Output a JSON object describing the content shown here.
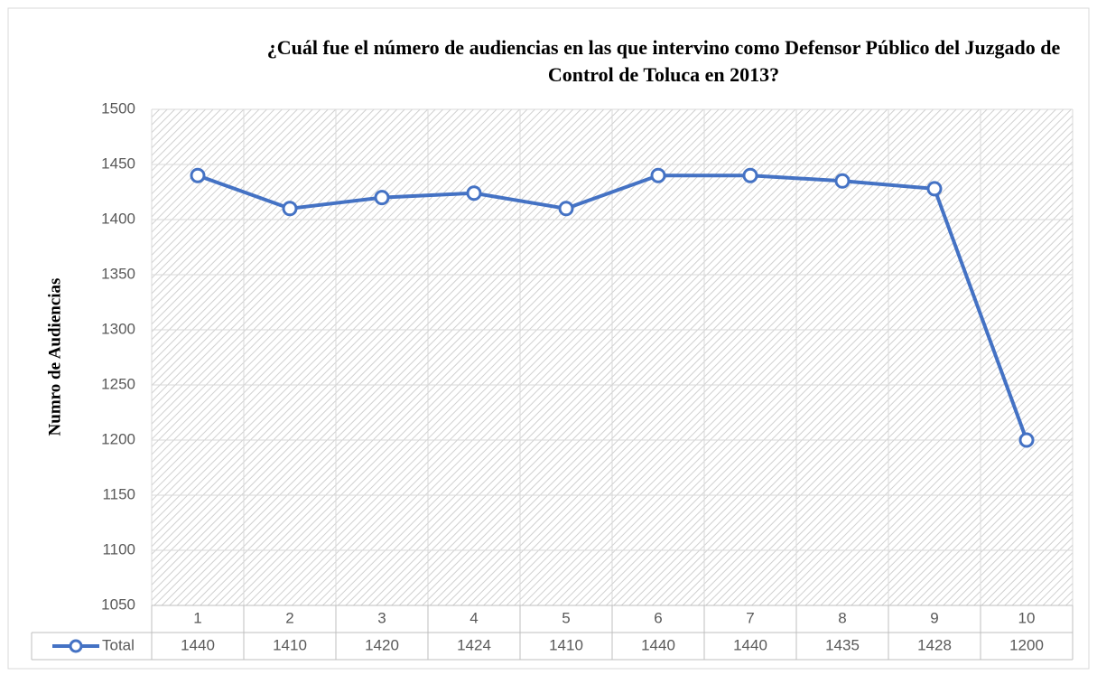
{
  "chart_data": {
    "type": "line",
    "title": "¿Cuál fue el número de audiencias en las que intervino como Defensor Público del Juzgado de Control de Toluca en 2013?",
    "y_label": "Numro de Audiencias",
    "categories": [
      "1",
      "2",
      "3",
      "4",
      "5",
      "6",
      "7",
      "8",
      "9",
      "10"
    ],
    "series": [
      {
        "name": "Total",
        "color": "#4472c4",
        "values": [
          1440,
          1410,
          1420,
          1424,
          1410,
          1440,
          1440,
          1435,
          1428,
          1200
        ]
      }
    ],
    "ylim": [
      1050,
      1500
    ],
    "yticks": [
      1050,
      1100,
      1150,
      1200,
      1250,
      1300,
      1350,
      1400,
      1450,
      1500
    ],
    "grid": true,
    "data_table": true
  }
}
